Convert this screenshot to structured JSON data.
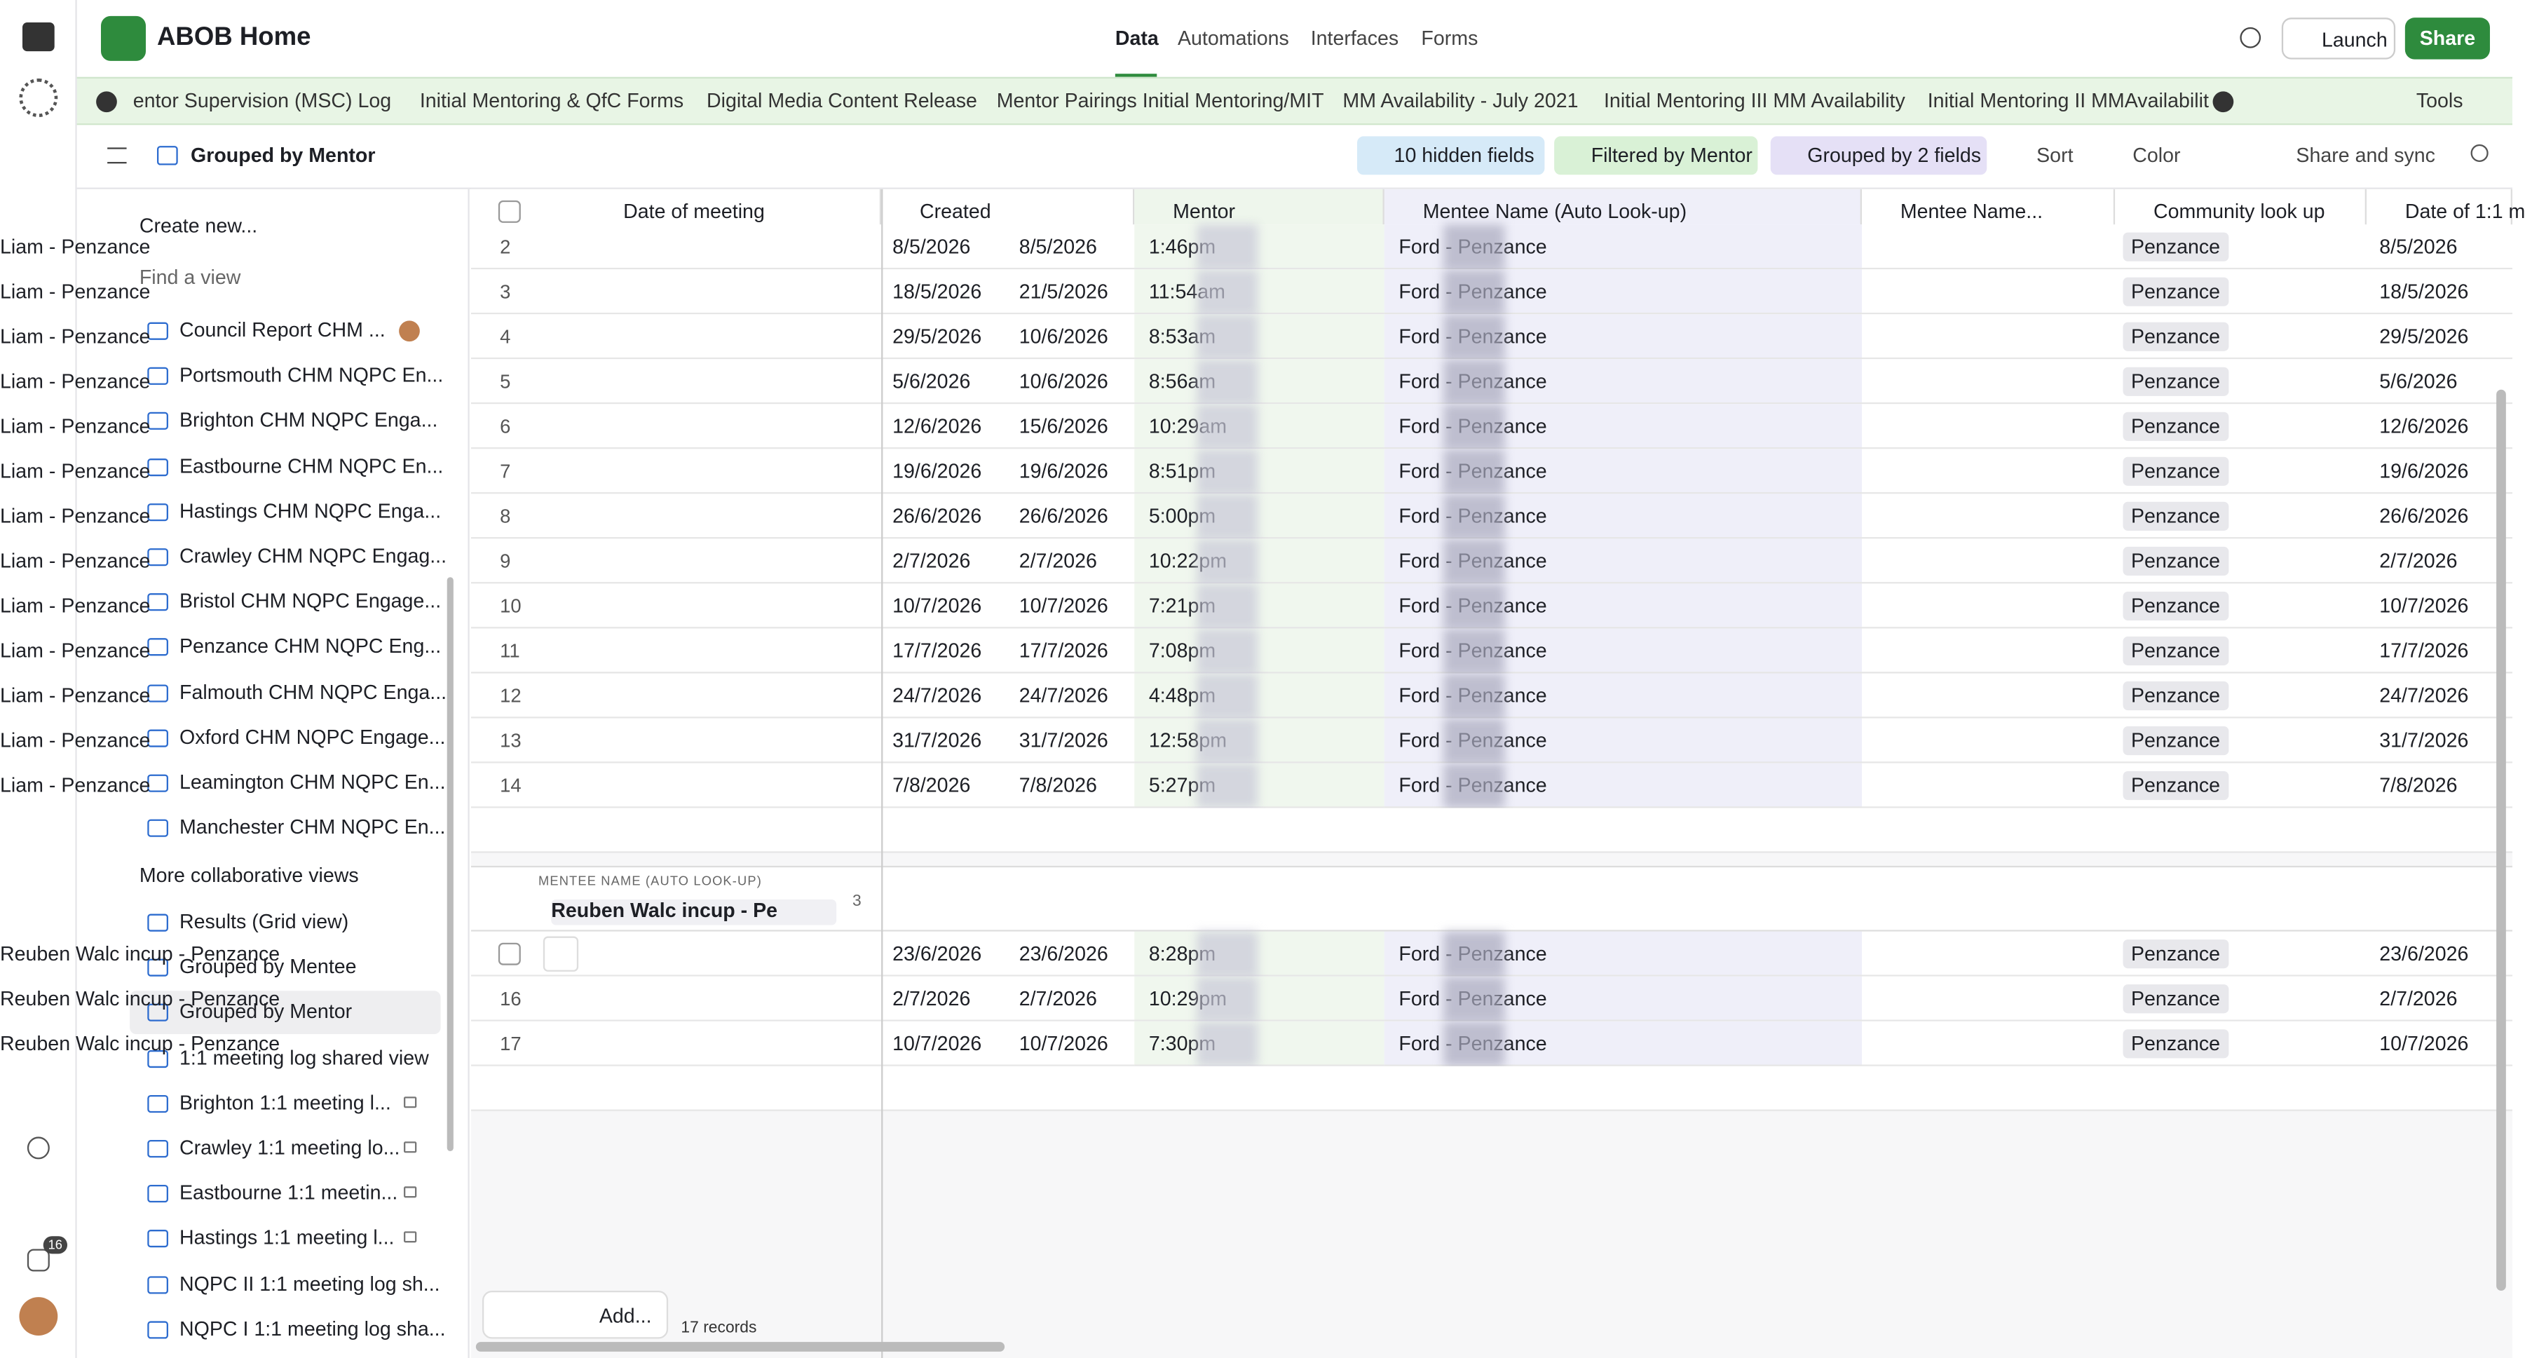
{
  "header": {
    "app_name": "ABOB Home",
    "nav": [
      "Data",
      "Automations",
      "Interfaces",
      "Forms"
    ],
    "buttons": [
      "Launch",
      "Share"
    ]
  },
  "tabs": {
    "items": [
      "entor Supervision (MSC) Log",
      "Initial Mentoring & QfC Forms",
      "Digital Media Content Release",
      "Mentor Pairings Initial Mentoring/MIT",
      "MM Availability - July 2021",
      "Initial Mentoring III MM Availability",
      "Initial Mentoring II MMAvailabilit"
    ],
    "tools": "Tools"
  },
  "toolbar": {
    "view_name": "Grouped by Mentor",
    "actions": [
      "10 hidden fields",
      "Filtered by Mentor",
      "Grouped by 2 fields",
      "Sort",
      "Color",
      "Share and sync"
    ]
  },
  "rail": {
    "badge": "16"
  },
  "sidebar": {
    "create": "Create new...",
    "search": "Find a view",
    "views": [
      {
        "label": "Council Report CHM ..."
      },
      {
        "label": "Portsmouth CHM NQPC En..."
      },
      {
        "label": "Brighton CHM NQPC Enga..."
      },
      {
        "label": "Eastbourne CHM NQPC En..."
      },
      {
        "label": "Hastings CHM NQPC Enga..."
      },
      {
        "label": "Crawley CHM NQPC Engag..."
      },
      {
        "label": "Bristol CHM NQPC Engage..."
      },
      {
        "label": "Penzance CHM NQPC Eng..."
      },
      {
        "label": "Falmouth CHM NQPC Enga..."
      },
      {
        "label": "Oxford CHM NQPC Engage..."
      },
      {
        "label": "Leamington CHM NQPC En..."
      },
      {
        "label": "Manchester CHM NQPC En..."
      }
    ],
    "section": "More collaborative views",
    "views2": [
      {
        "label": "Results (Grid view)",
        "locked": false
      },
      {
        "label": "Grouped by Mentee",
        "locked": false
      },
      {
        "label": "Grouped by Mentor",
        "locked": false,
        "selected": true
      },
      {
        "label": "1:1 meeting log shared view",
        "locked": false
      },
      {
        "label": "Brighton 1:1 meeting l...",
        "locked": true
      },
      {
        "label": "Crawley 1:1 meeting lo...",
        "locked": true
      },
      {
        "label": "Eastbourne 1:1 meetin...",
        "locked": true
      },
      {
        "label": "Hastings 1:1 meeting l...",
        "locked": true
      },
      {
        "label": "NQPC II 1:1 meeting log sh...",
        "locked": false
      },
      {
        "label": "NQPC I 1:1 meeting log sha...",
        "locked": false
      }
    ]
  },
  "grid": {
    "columns": [
      "Date of meeting",
      "Created",
      "Mentor",
      "Mentee Name (Auto Look-up)",
      "Mentee Name...",
      "Community look up",
      "Date of 1:1 m"
    ],
    "group1": [
      [
        2,
        "8/5/2026",
        "8/5/2026",
        "1:46pm",
        "Ford - Penzance",
        "Liam - Penzance",
        "Penzance",
        "8/5/2026"
      ],
      [
        3,
        "18/5/2026",
        "21/5/2026",
        "11:54am",
        "Ford - Penzance",
        "Liam - Penzance",
        "Penzance",
        "18/5/2026"
      ],
      [
        4,
        "29/5/2026",
        "10/6/2026",
        "8:53am",
        "Ford - Penzance",
        "Liam - Penzance",
        "Penzance",
        "29/5/2026"
      ],
      [
        5,
        "5/6/2026",
        "10/6/2026",
        "8:56am",
        "Ford - Penzance",
        "Liam - Penzance",
        "Penzance",
        "5/6/2026"
      ],
      [
        6,
        "12/6/2026",
        "15/6/2026",
        "10:29am",
        "Ford - Penzance",
        "Liam - Penzance",
        "Penzance",
        "12/6/2026"
      ],
      [
        7,
        "19/6/2026",
        "19/6/2026",
        "8:51pm",
        "Ford - Penzance",
        "Liam - Penzance",
        "Penzance",
        "19/6/2026"
      ],
      [
        8,
        "26/6/2026",
        "26/6/2026",
        "5:00pm",
        "Ford - Penzance",
        "Liam - Penzance",
        "Penzance",
        "26/6/2026"
      ],
      [
        9,
        "2/7/2026",
        "2/7/2026",
        "10:22pm",
        "Ford - Penzance",
        "Liam - Penzance",
        "Penzance",
        "2/7/2026"
      ],
      [
        10,
        "10/7/2026",
        "10/7/2026",
        "7:21pm",
        "Ford - Penzance",
        "Liam - Penzance",
        "Penzance",
        "10/7/2026"
      ],
      [
        11,
        "17/7/2026",
        "17/7/2026",
        "7:08pm",
        "Ford - Penzance",
        "Liam - Penzance",
        "Penzance",
        "17/7/2026"
      ],
      [
        12,
        "24/7/2026",
        "24/7/2026",
        "4:48pm",
        "Ford - Penzance",
        "Liam - Penzance",
        "Penzance",
        "24/7/2026"
      ],
      [
        13,
        "31/7/2026",
        "31/7/2026",
        "12:58pm",
        "Ford - Penzance",
        "Liam - Penzance",
        "Penzance",
        "31/7/2026"
      ],
      [
        14,
        "7/8/2026",
        "7/8/2026",
        "5:27pm",
        "Ford - Penzance",
        "Liam - Penzance",
        "Penzance",
        "7/8/2026"
      ]
    ],
    "group2_label": "MENTEE NAME (AUTO LOOK-UP)",
    "group2_value": "Reuben Walc incup - Pe",
    "group2_count": "3",
    "group2": [
      [
        null,
        "23/6/2026",
        "23/6/2026",
        "8:28pm",
        "Ford - Penzance",
        "Reuben Walc incup - Penzance",
        "Penzance",
        "23/6/2026"
      ],
      [
        16,
        "2/7/2026",
        "2/7/2026",
        "10:29pm",
        "Ford - Penzance",
        "Reuben Walc incup - Penzance",
        "Penzance",
        "2/7/2026"
      ],
      [
        17,
        "10/7/2026",
        "10/7/2026",
        "7:30pm",
        "Ford - Penzance",
        "Reuben Walc incup - Penzance",
        "Penzance",
        "10/7/2026"
      ]
    ],
    "add": "Add...",
    "records": "17 records"
  }
}
